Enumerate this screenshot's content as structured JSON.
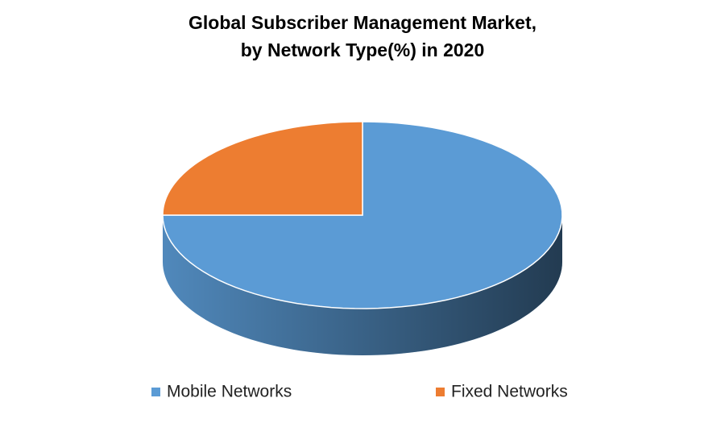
{
  "chart_data": {
    "type": "pie",
    "title": [
      "Global Subscriber Management Market,",
      "by Network Type(%) in 2020"
    ],
    "categories": [
      "Mobile Networks",
      "Fixed Networks"
    ],
    "values": [
      75,
      25
    ],
    "colors": [
      "#5b9bd5",
      "#ed7d31"
    ],
    "legend": "bottom"
  }
}
